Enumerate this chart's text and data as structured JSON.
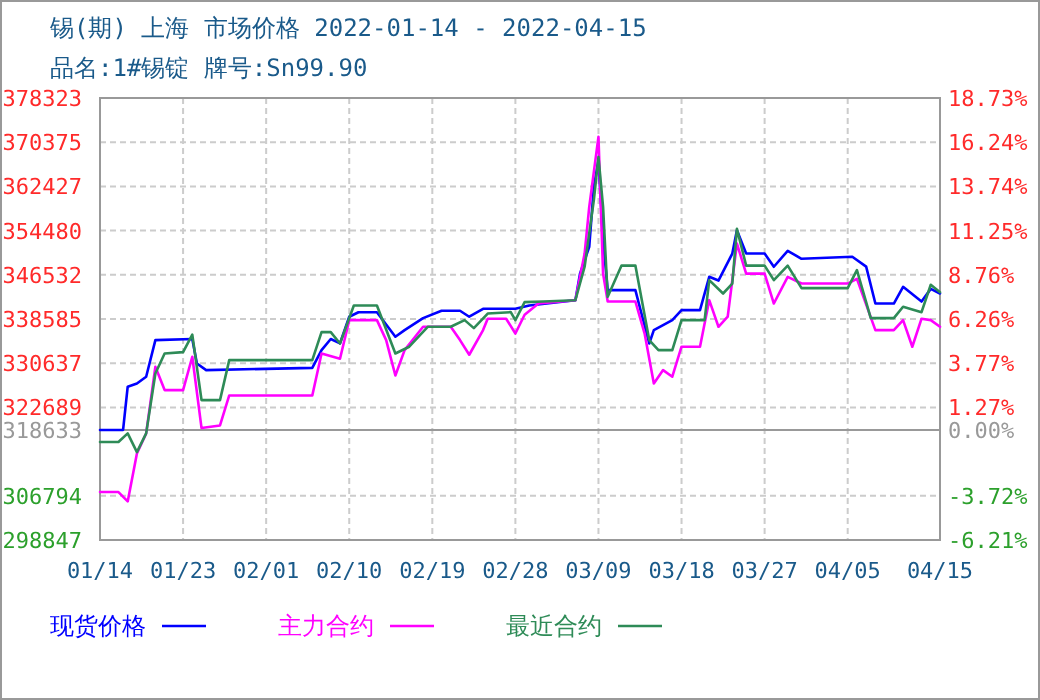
{
  "chart_data": {
    "type": "line",
    "title": "锡(期) 上海 市场价格 2022-01-14 - 2022-04-15",
    "subtitle": "品名:1#锡锭 牌号:Sn99.90",
    "xlim": [
      "2022-01-14",
      "2022-04-15"
    ],
    "xticks": [
      {
        "value": "2022-01-14",
        "label": "01/14"
      },
      {
        "value": "2022-01-23",
        "label": "01/23"
      },
      {
        "value": "2022-02-01",
        "label": "02/01"
      },
      {
        "value": "2022-02-10",
        "label": "02/10"
      },
      {
        "value": "2022-02-19",
        "label": "02/19"
      },
      {
        "value": "2022-02-28",
        "label": "02/28"
      },
      {
        "value": "2022-03-09",
        "label": "03/09"
      },
      {
        "value": "2022-03-18",
        "label": "03/18"
      },
      {
        "value": "2022-03-27",
        "label": "03/27"
      },
      {
        "value": "2022-04-05",
        "label": "04/05"
      },
      {
        "value": "2022-04-15",
        "label": "04/15"
      }
    ],
    "ylim": [
      298847,
      378323
    ],
    "yticks": [
      298847,
      306794,
      318633,
      322689,
      330637,
      338585,
      346532,
      354480,
      362427,
      370375,
      378323
    ],
    "y2lim": [
      -6.21,
      18.73
    ],
    "y2ticks": [
      {
        "value": -6.21,
        "label": "-6.21%"
      },
      {
        "value": -3.72,
        "label": "-3.72%"
      },
      {
        "value": 0,
        "label": "0.00%"
      },
      {
        "value": 1.27,
        "label": "1.27%"
      },
      {
        "value": 3.77,
        "label": "3.77%"
      },
      {
        "value": 6.26,
        "label": "6.26%"
      },
      {
        "value": 8.76,
        "label": "8.76%"
      },
      {
        "value": 11.25,
        "label": "11.25%"
      },
      {
        "value": 13.74,
        "label": "13.74%"
      },
      {
        "value": 16.24,
        "label": "16.24%"
      },
      {
        "value": 18.73,
        "label": "18.73%"
      }
    ],
    "ref_lines": [
      {
        "axis": "y",
        "value": 318633,
        "color": "#999999"
      }
    ],
    "grid": true,
    "legend": "bottom",
    "marker": "none",
    "line_style": "solid",
    "series": [
      {
        "name": "现货价格",
        "color": "#0000ff",
        "x": [
          "2022-01-14",
          "2022-01-16T12:00",
          "2022-01-17",
          "2022-01-18",
          "2022-01-19",
          "2022-01-20",
          "2022-01-24",
          "2022-01-24T12:00",
          "2022-01-25T12:00",
          "2022-02-06",
          "2022-02-07",
          "2022-02-08",
          "2022-02-09",
          "2022-02-10",
          "2022-02-11",
          "2022-02-13",
          "2022-02-15",
          "2022-02-16",
          "2022-02-18",
          "2022-02-20",
          "2022-02-22",
          "2022-02-23",
          "2022-02-24T12:00",
          "2022-02-28",
          "2022-03-01T12:00",
          "2022-03-06T12:00",
          "2022-03-07",
          "2022-03-08",
          "2022-03-08T12:00",
          "2022-03-09",
          "2022-03-09T12:00",
          "2022-03-10",
          "2022-03-13",
          "2022-03-14T12:00",
          "2022-03-15",
          "2022-03-17",
          "2022-03-18",
          "2022-03-20",
          "2022-03-21",
          "2022-03-22",
          "2022-03-23T12:00",
          "2022-03-24",
          "2022-03-25",
          "2022-03-27",
          "2022-03-28",
          "2022-03-29T12:00",
          "2022-03-31",
          "2022-04-05T12:00",
          "2022-04-07",
          "2022-04-08",
          "2022-04-10",
          "2022-04-11",
          "2022-04-13",
          "2022-04-14",
          "2022-04-15"
        ],
        "values": [
          318633,
          318633,
          326413,
          326990,
          328200,
          334787,
          334990,
          330580,
          329400,
          329800,
          332990,
          334990,
          334200,
          338990,
          339800,
          339800,
          335400,
          336590,
          338740,
          340070,
          340070,
          338990,
          340420,
          340420,
          341000,
          341970,
          346750,
          351550,
          362350,
          367130,
          352760,
          343770,
          343770,
          334180,
          336590,
          338380,
          340180,
          340180,
          346170,
          345500,
          350350,
          354550,
          350350,
          350350,
          347980,
          350850,
          349410,
          349770,
          348000,
          341370,
          341370,
          344380,
          341730,
          344000,
          343170
        ]
      },
      {
        "name": "主力合约",
        "color": "#ff00ff",
        "x": [
          "2022-01-14",
          "2022-01-16",
          "2022-01-17",
          "2022-01-18",
          "2022-01-19",
          "2022-01-20",
          "2022-01-21",
          "2022-01-23",
          "2022-01-24",
          "2022-01-25",
          "2022-01-27",
          "2022-01-28",
          "2022-02-06",
          "2022-02-07",
          "2022-02-09",
          "2022-02-10",
          "2022-02-13",
          "2022-02-14",
          "2022-02-15",
          "2022-02-16",
          "2022-02-18",
          "2022-02-21",
          "2022-02-22",
          "2022-02-23",
          "2022-02-24T12:00",
          "2022-02-25",
          "2022-02-27",
          "2022-02-28",
          "2022-03-01",
          "2022-03-02T12:00",
          "2022-03-06T12:00",
          "2022-03-07T12:00",
          "2022-03-08",
          "2022-03-09",
          "2022-03-09T12:00",
          "2022-03-10",
          "2022-03-13",
          "2022-03-14",
          "2022-03-15",
          "2022-03-16",
          "2022-03-17",
          "2022-03-18",
          "2022-03-20",
          "2022-03-21",
          "2022-03-22",
          "2022-03-23",
          "2022-03-24",
          "2022-03-25",
          "2022-03-27",
          "2022-03-28",
          "2022-03-29T12:00",
          "2022-03-31",
          "2022-04-05",
          "2022-04-06",
          "2022-04-08",
          "2022-04-10",
          "2022-04-11",
          "2022-04-12",
          "2022-04-13",
          "2022-04-14",
          "2022-04-15"
        ],
        "values": [
          307470,
          307470,
          305790,
          314410,
          318010,
          330000,
          325800,
          325800,
          331800,
          318970,
          319440,
          324840,
          324840,
          332380,
          331440,
          338380,
          338380,
          334790,
          328430,
          332990,
          337190,
          337190,
          334790,
          332160,
          336590,
          338640,
          338640,
          335970,
          339350,
          341370,
          341970,
          350350,
          358760,
          371340,
          346750,
          341730,
          341730,
          335970,
          326990,
          329400,
          328210,
          333600,
          333600,
          341970,
          337190,
          338990,
          352150,
          346750,
          346750,
          341370,
          346170,
          344960,
          344960,
          345800,
          336590,
          336590,
          338380,
          333600,
          338640,
          338380,
          337190
        ]
      },
      {
        "name": "最近合约",
        "color": "#2e8b57",
        "x": [
          "2022-01-14",
          "2022-01-16",
          "2022-01-17",
          "2022-01-18",
          "2022-01-19",
          "2022-01-20",
          "2022-01-21",
          "2022-01-23",
          "2022-01-24",
          "2022-01-25",
          "2022-01-27",
          "2022-01-28",
          "2022-02-06",
          "2022-02-07",
          "2022-02-08",
          "2022-02-09",
          "2022-02-10T12:00",
          "2022-02-13",
          "2022-02-15",
          "2022-02-16T12:00",
          "2022-02-18T12:00",
          "2022-02-21",
          "2022-02-22T12:00",
          "2022-02-23T12:00",
          "2022-02-25",
          "2022-02-27T12:00",
          "2022-02-28",
          "2022-03-01",
          "2022-03-03",
          "2022-03-06T12:00",
          "2022-03-07T12:00",
          "2022-03-08T12:00",
          "2022-03-09",
          "2022-03-09T12:00",
          "2022-03-10",
          "2022-03-11T12:00",
          "2022-03-13",
          "2022-03-14T12:00",
          "2022-03-15T12:00",
          "2022-03-17",
          "2022-03-18",
          "2022-03-20T12:00",
          "2022-03-21",
          "2022-03-22T12:00",
          "2022-03-23T12:00",
          "2022-03-24",
          "2022-03-25",
          "2022-03-27",
          "2022-03-28",
          "2022-03-29T12:00",
          "2022-03-31",
          "2022-04-05",
          "2022-04-06",
          "2022-04-07T12:00",
          "2022-04-10",
          "2022-04-11",
          "2022-04-13",
          "2022-04-14",
          "2022-04-15"
        ],
        "values": [
          316460,
          316460,
          318010,
          314660,
          318010,
          328790,
          332380,
          332630,
          335760,
          324000,
          324000,
          331190,
          331190,
          336220,
          336220,
          334180,
          341000,
          341000,
          332380,
          333600,
          337190,
          337190,
          338380,
          336940,
          339570,
          339820,
          338380,
          341620,
          341730,
          341970,
          347980,
          359950,
          367730,
          358760,
          342570,
          348190,
          348190,
          334790,
          332990,
          332990,
          338380,
          338380,
          345570,
          343170,
          344960,
          354800,
          348190,
          348190,
          345570,
          348190,
          344130,
          344130,
          347370,
          338740,
          338740,
          340790,
          339820,
          344740,
          343410
        ]
      }
    ]
  }
}
